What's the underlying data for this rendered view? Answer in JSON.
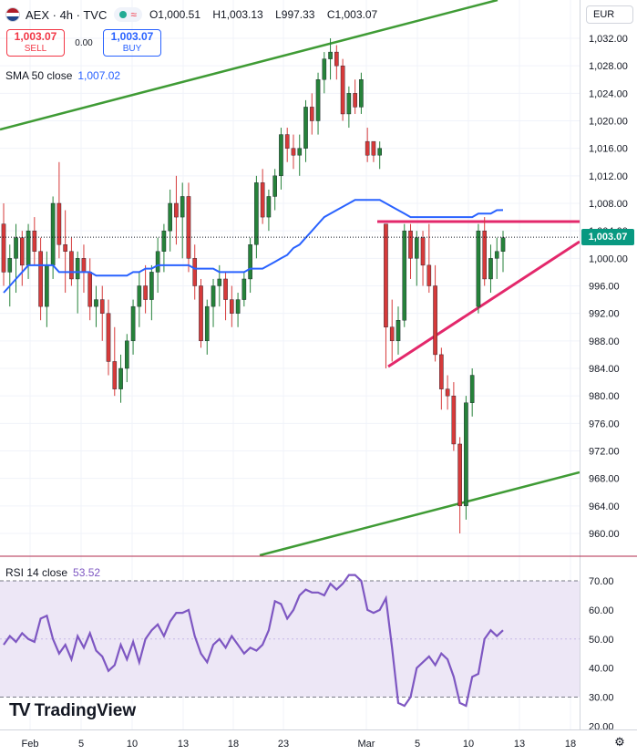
{
  "header": {
    "symbol": "AEX · 4h · TVC",
    "open_label": "O",
    "open": "1,000.51",
    "high_label": "H",
    "high": "1,003.13",
    "low_label": "L",
    "low": "997.33",
    "close_label": "C",
    "close": "1,003.07"
  },
  "trade": {
    "sell_price": "1,003.07",
    "sell_label": "SELL",
    "spread": "0.00",
    "buy_price": "1,003.07",
    "buy_label": "BUY"
  },
  "currency": "EUR",
  "sma": {
    "label": "SMA 50 close",
    "value": "1,007.02"
  },
  "rsi": {
    "label": "RSI 14 close",
    "value": "53.52"
  },
  "price_tag": "1,003.07",
  "branding": {
    "logo_text": "TradingView"
  },
  "colors": {
    "up": "#26823a",
    "down": "#d63a3a",
    "sma": "#2962ff",
    "rsi": "#7e57c2",
    "channel": "#3f9b35",
    "pattern": "#e3286b",
    "rsi_band": "#ede7f6"
  },
  "chart_data": [
    {
      "type": "candlestick",
      "ylim": [
        956,
        1034
      ],
      "y_ticks": [
        "1,032.00",
        "1,028.00",
        "1,024.00",
        "1,020.00",
        "1,016.00",
        "1,012.00",
        "1,008.00",
        "1,004.00",
        "1,000.00",
        "996.00",
        "992.00",
        "988.00",
        "984.00",
        "980.00",
        "976.00",
        "972.00",
        "968.00",
        "964.00",
        "960.00"
      ],
      "x_ticks": [
        "Feb",
        "5",
        "10",
        "13",
        "18",
        "23",
        "Mar",
        "5",
        "10",
        "13",
        "18"
      ],
      "ohlc": [
        [
          1005,
          1008,
          996,
          998
        ],
        [
          998,
          1002,
          993,
          1000
        ],
        [
          1000,
          1005,
          995,
          1003
        ],
        [
          1003,
          1004,
          996,
          999
        ],
        [
          999,
          1005,
          997,
          1004
        ],
        [
          1004,
          1006,
          999,
          1001
        ],
        [
          1001,
          1003,
          991,
          993
        ],
        [
          993,
          1001,
          990,
          999
        ],
        [
          999,
          1009,
          997,
          1008
        ],
        [
          1008,
          1014,
          1000,
          1002
        ],
        [
          1002,
          1007,
          995,
          1001
        ],
        [
          1001,
          1003,
          996,
          997
        ],
        [
          997,
          1001,
          992,
          1000
        ],
        [
          1000,
          1002,
          995,
          998
        ],
        [
          998,
          1000,
          991,
          993
        ],
        [
          993,
          996,
          990,
          994
        ],
        [
          994,
          996,
          988,
          992
        ],
        [
          992,
          994,
          983,
          985
        ],
        [
          985,
          990,
          980,
          981
        ],
        [
          981,
          986,
          979,
          984
        ],
        [
          984,
          989,
          982,
          988
        ],
        [
          988,
          994,
          986,
          993
        ],
        [
          993,
          998,
          990,
          996
        ],
        [
          996,
          999,
          992,
          994
        ],
        [
          994,
          999,
          991,
          998
        ],
        [
          998,
          1003,
          995,
          1001
        ],
        [
          1001,
          1005,
          998,
          1004
        ],
        [
          1004,
          1010,
          1001,
          1008
        ],
        [
          1008,
          1012,
          1002,
          1006
        ],
        [
          1006,
          1011,
          1000,
          1009
        ],
        [
          1009,
          1011,
          998,
          1000
        ],
        [
          1000,
          1002,
          994,
          996
        ],
        [
          996,
          997,
          987,
          988
        ],
        [
          988,
          994,
          986,
          993
        ],
        [
          993,
          997,
          990,
          996
        ],
        [
          996,
          999,
          993,
          997
        ],
        [
          997,
          998,
          991,
          994
        ],
        [
          994,
          996,
          990,
          992
        ],
        [
          992,
          995,
          990,
          994
        ],
        [
          994,
          998,
          993,
          997
        ],
        [
          997,
          1003,
          995,
          1002
        ],
        [
          1002,
          1012,
          1000,
          1011
        ],
        [
          1011,
          1013,
          1005,
          1006
        ],
        [
          1006,
          1010,
          1004,
          1009
        ],
        [
          1009,
          1013,
          1007,
          1012
        ],
        [
          1012,
          1019,
          1010,
          1018
        ],
        [
          1018,
          1019,
          1014,
          1016
        ],
        [
          1016,
          1018,
          1013,
          1015
        ],
        [
          1015,
          1018,
          1012,
          1016
        ],
        [
          1016,
          1023,
          1014,
          1022
        ],
        [
          1022,
          1024,
          1018,
          1020
        ],
        [
          1020,
          1027,
          1018,
          1026
        ],
        [
          1026,
          1030,
          1024,
          1029
        ],
        [
          1029,
          1032,
          1026,
          1030
        ],
        [
          1030,
          1031,
          1026,
          1028
        ],
        [
          1028,
          1029,
          1020,
          1021
        ],
        [
          1021,
          1025,
          1019,
          1024
        ],
        [
          1024,
          1026,
          1021,
          1022
        ],
        [
          1022,
          1027,
          1021,
          1026
        ],
        [
          1017,
          1019,
          1014,
          1015
        ],
        [
          1017,
          1017,
          1014,
          1015
        ],
        [
          1015,
          1017,
          1013,
          1016
        ],
        [
          1005,
          1005,
          984,
          990
        ],
        [
          990,
          994,
          985,
          988
        ],
        [
          988,
          993,
          986,
          991
        ],
        [
          991,
          1005,
          990,
          1004
        ],
        [
          1004,
          1005,
          997,
          1000
        ],
        [
          1000,
          1004,
          996,
          1003
        ],
        [
          1003,
          1004,
          996,
          999
        ],
        [
          999,
          1005,
          995,
          996
        ],
        [
          996,
          999,
          985,
          986
        ],
        [
          986,
          987,
          978,
          981
        ],
        [
          981,
          983,
          978,
          980
        ],
        [
          980,
          982,
          972,
          973
        ],
        [
          973,
          974,
          960,
          964
        ],
        [
          964,
          980,
          962,
          979
        ],
        [
          979,
          984,
          977,
          983
        ],
        [
          993,
          1005,
          992,
          1004
        ],
        [
          1004,
          1006,
          996,
          997
        ],
        [
          997,
          1002,
          995,
          1000
        ],
        [
          1000,
          1003,
          997,
          1001
        ],
        [
          1001,
          1004,
          998,
          1003
        ]
      ],
      "sma50": [
        995,
        996,
        997,
        998,
        999,
        999,
        999,
        999,
        999,
        998,
        998,
        998,
        998,
        998,
        998,
        997.5,
        997.5,
        997.5,
        997.5,
        997.5,
        997.5,
        998,
        998,
        998.5,
        998.5,
        999,
        999,
        999,
        999,
        999,
        999,
        998.5,
        998.5,
        998.5,
        998.5,
        998,
        998,
        998,
        998,
        998,
        998.5,
        998.5,
        998.5,
        999,
        999.5,
        1000,
        1000.5,
        1001.5,
        1002,
        1003,
        1004,
        1005,
        1006,
        1006.5,
        1007,
        1007.5,
        1008,
        1008.5,
        1008.5,
        1008.5,
        1008.5,
        1008.5,
        1008,
        1007.5,
        1007,
        1006.5,
        1006,
        1006,
        1006,
        1006,
        1006,
        1006,
        1006,
        1006,
        1006,
        1006,
        1006,
        1006.5,
        1006.5,
        1006.5,
        1007,
        1007.02
      ]
    },
    {
      "type": "line",
      "name": "RSI 14 close",
      "ylim": [
        18,
        74
      ],
      "y_ticks": [
        "70.00",
        "60.00",
        "50.00",
        "40.00",
        "30.00",
        "20.00"
      ],
      "bands": [
        70,
        30
      ],
      "values": [
        48,
        51,
        49,
        52,
        50,
        49,
        57,
        58,
        50,
        45,
        48,
        43,
        51,
        47,
        52,
        46,
        44,
        39,
        41,
        48,
        43,
        49,
        42,
        50,
        53,
        55,
        51,
        56,
        59,
        59,
        60,
        51,
        45,
        42,
        48,
        50,
        47,
        51,
        48,
        45,
        47,
        46,
        48,
        53,
        63,
        62,
        57,
        60,
        65,
        67,
        66,
        66,
        65,
        69,
        67,
        69,
        72,
        72,
        70,
        60,
        59,
        60,
        64,
        47,
        28,
        27,
        30,
        40,
        42,
        44,
        41,
        45,
        43,
        37,
        28,
        27,
        37,
        38,
        50,
        53,
        51,
        53
      ]
    }
  ]
}
